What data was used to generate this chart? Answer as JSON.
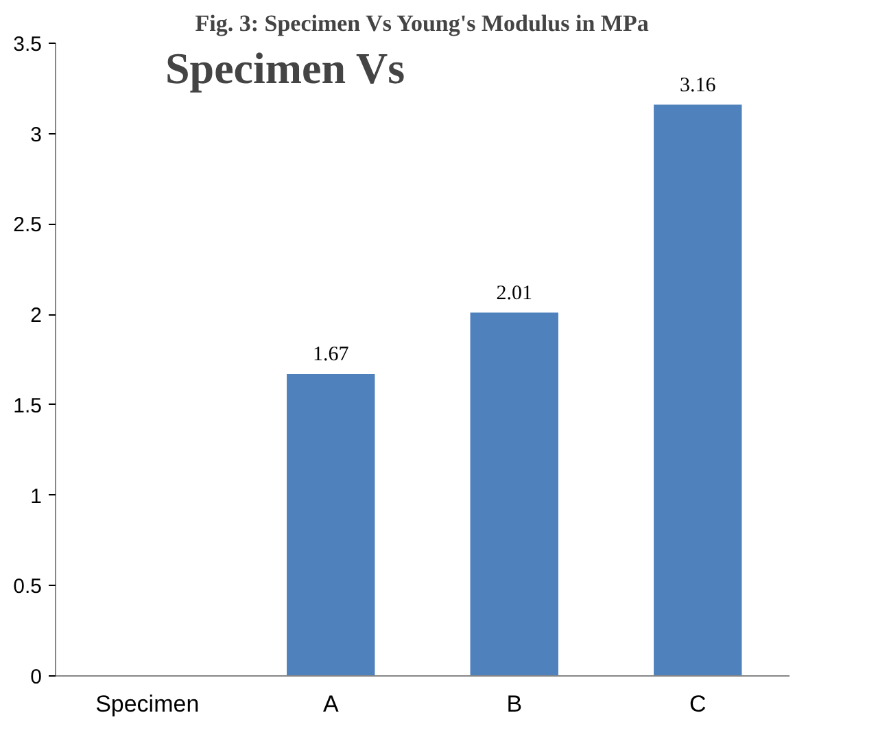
{
  "chart_data": {
    "type": "bar",
    "title": "Fig. 3: Specimen Vs Young's Modulus in MPa",
    "annotations": [
      "Specimen Vs"
    ],
    "categories": [
      "Specimen",
      "A",
      "B",
      "C"
    ],
    "values": [
      null,
      1.67,
      2.01,
      3.16
    ],
    "color": "#4f81bd",
    "ylim": [
      0,
      3.5
    ],
    "yticks": [
      0,
      0.5,
      1,
      1.5,
      2,
      2.5,
      3,
      3.5
    ],
    "grid": false,
    "data_labels": true
  }
}
